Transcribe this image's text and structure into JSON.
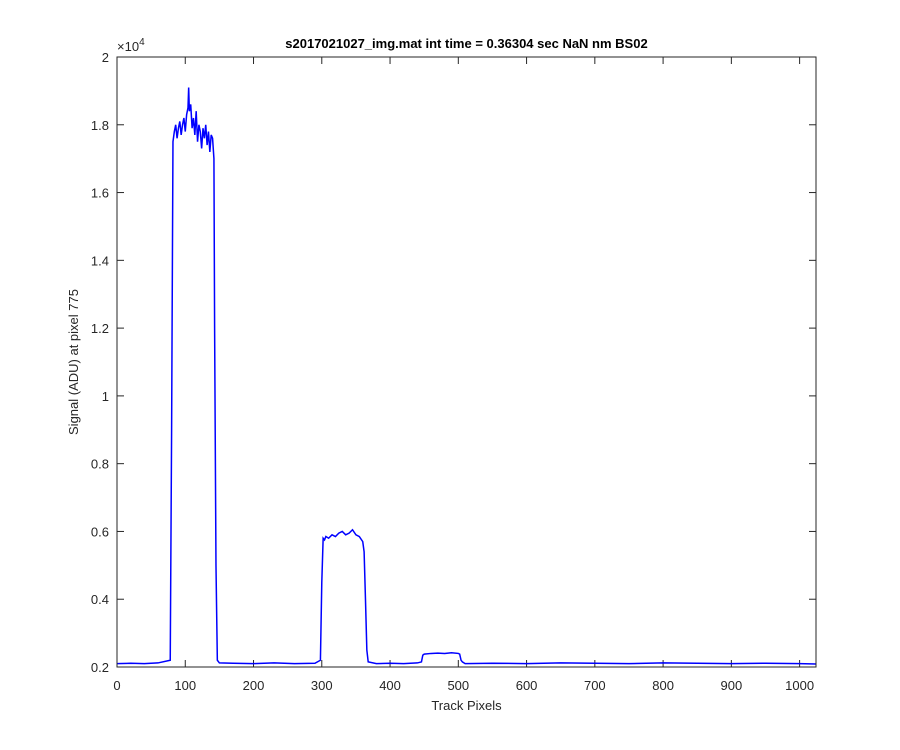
{
  "chart_data": {
    "type": "line",
    "title": "s2017021027_img.mat int time = 0.36304 sec  NaN nm BS02",
    "xlabel": "Track Pixels",
    "ylabel": "Signal (ADU) at pixel 775",
    "xlim": [
      0,
      1024
    ],
    "ylim": [
      2000,
      20000
    ],
    "x_ticks": [
      0,
      100,
      200,
      300,
      400,
      500,
      600,
      700,
      800,
      900,
      1000
    ],
    "y_ticks": [
      2000,
      4000,
      6000,
      8000,
      10000,
      12000,
      14000,
      16000,
      18000,
      20000
    ],
    "y_tick_labels": [
      "0.2",
      "0.4",
      "0.6",
      "0.8",
      "1",
      "1.2",
      "1.4",
      "1.6",
      "1.8",
      "2"
    ],
    "y_multiplier_base": "×10",
    "y_multiplier_exp": "4",
    "grid": false,
    "line_color": "#0000ff",
    "series": [
      {
        "x": [
          0,
          20,
          40,
          60,
          78,
          80,
          82,
          84,
          86,
          88,
          90,
          92,
          94,
          96,
          98,
          100,
          102,
          104,
          105,
          106,
          108,
          110,
          112,
          114,
          116,
          118,
          120,
          122,
          124,
          126,
          128,
          130,
          132,
          134,
          136,
          138,
          140,
          142,
          143,
          145,
          147,
          150,
          170,
          200,
          230,
          260,
          290,
          298,
          300,
          302,
          304,
          306,
          310,
          315,
          320,
          325,
          330,
          335,
          340,
          345,
          350,
          355,
          360,
          362,
          364,
          366,
          368,
          380,
          400,
          420,
          440,
          446,
          448,
          450,
          460,
          470,
          480,
          490,
          500,
          502,
          504,
          506,
          510,
          550,
          600,
          650,
          700,
          750,
          800,
          850,
          900,
          950,
          1000,
          1024
        ],
        "y": [
          2100,
          2110,
          2100,
          2120,
          2200,
          9000,
          17500,
          17800,
          18000,
          17600,
          17900,
          18100,
          17700,
          18000,
          18200,
          17800,
          18300,
          18500,
          19100,
          18400,
          18600,
          17900,
          18200,
          17700,
          18400,
          17500,
          18000,
          17800,
          17300,
          17900,
          17600,
          18000,
          17400,
          17800,
          17200,
          17700,
          17600,
          17000,
          12000,
          5000,
          2200,
          2120,
          2110,
          2100,
          2120,
          2100,
          2110,
          2200,
          4500,
          5800,
          5750,
          5850,
          5800,
          5900,
          5850,
          5950,
          6000,
          5900,
          5950,
          6050,
          5900,
          5850,
          5700,
          5400,
          4000,
          2500,
          2150,
          2100,
          2110,
          2100,
          2120,
          2150,
          2350,
          2380,
          2400,
          2410,
          2400,
          2420,
          2400,
          2380,
          2200,
          2150,
          2100,
          2110,
          2100,
          2120,
          2110,
          2100,
          2120,
          2110,
          2100,
          2110,
          2100,
          2090
        ]
      }
    ]
  }
}
